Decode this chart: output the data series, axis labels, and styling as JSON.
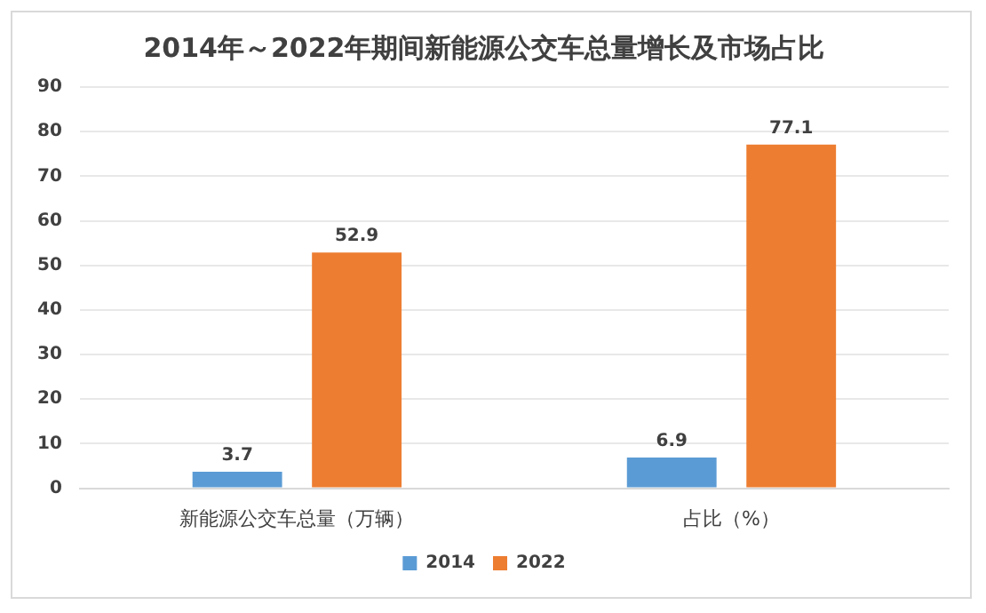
{
  "chart_data": {
    "type": "bar",
    "title": "2014年～2022年期间新能源公交车总量增长及市场占比",
    "categories": [
      "新能源公交车总量（万辆）",
      "占比（%）"
    ],
    "series": [
      {
        "name": "2014",
        "color": "#5b9bd5",
        "values": [
          3.7,
          6.9
        ]
      },
      {
        "name": "2022",
        "color": "#ed7d31",
        "values": [
          52.9,
          77.1
        ]
      }
    ],
    "ylim": [
      0,
      90
    ],
    "yticks": [
      0,
      10,
      20,
      30,
      40,
      50,
      60,
      70,
      80,
      90
    ],
    "grid": "y",
    "legend": "bottom",
    "data_labels": true
  }
}
